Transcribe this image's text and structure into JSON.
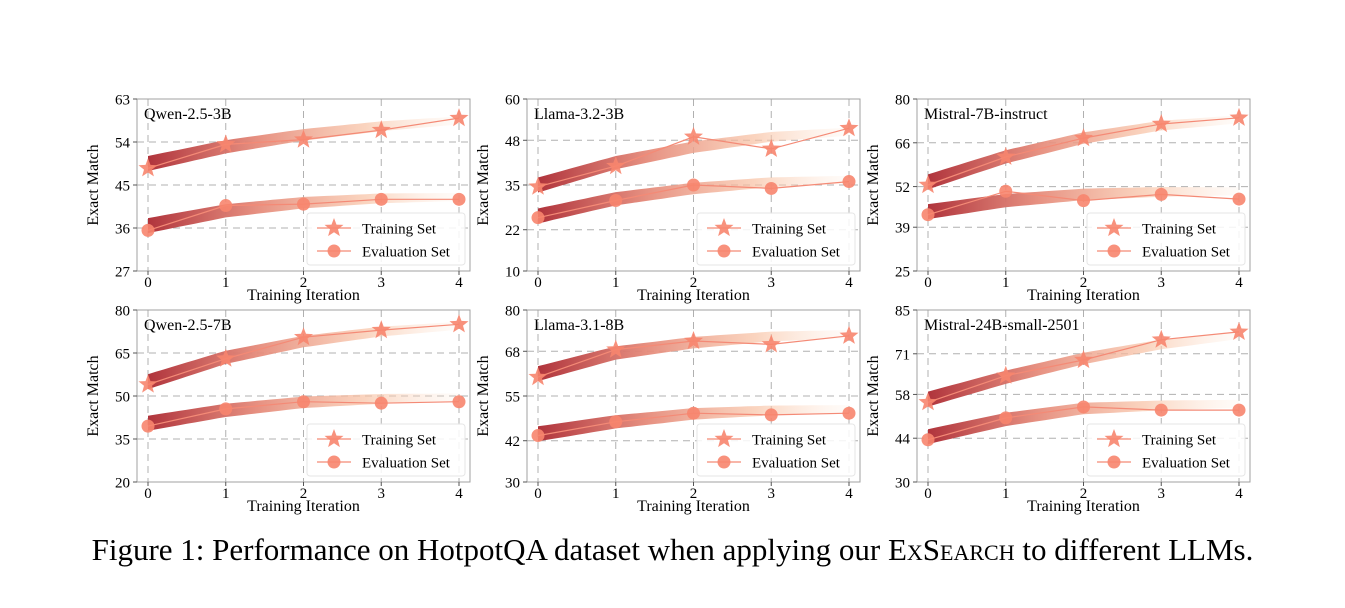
{
  "caption": {
    "prefix": "Figure 1: Performance on HotpotQA dataset when applying our ",
    "method": "ExSearch",
    "suffix": " to different LLMs."
  },
  "colors": {
    "marker": "#f7856e",
    "line": "#f48a76",
    "band_start": "#b0343c",
    "band_end": "#fde7d6",
    "grid": "#b0b0b0"
  },
  "chart_data": [
    {
      "type": "line",
      "title": "Qwen-2.5-3B",
      "xlabel": "Training Iteration",
      "ylabel": "Exact Match",
      "x": [
        0,
        1,
        2,
        3,
        4
      ],
      "yticks": [
        27,
        36,
        45,
        54,
        63
      ],
      "ylim": [
        27,
        63
      ],
      "grid": true,
      "legend": "bottom-right",
      "series": [
        {
          "name": "Training Set",
          "marker": "star",
          "values": [
            48.5,
            53.5,
            54.5,
            56.5,
            59
          ],
          "trend": [
            49.5,
            53.0,
            55.5,
            57.3,
            58.5
          ]
        },
        {
          "name": "Evaluation Set",
          "marker": "circle",
          "values": [
            35.5,
            40.7,
            41,
            42,
            42
          ],
          "trend": [
            36.5,
            39.6,
            41.3,
            42.2,
            42.5
          ]
        }
      ]
    },
    {
      "type": "line",
      "title": "Llama-3.2-3B",
      "xlabel": "Training Iteration",
      "ylabel": "Exact Match",
      "x": [
        0,
        1,
        2,
        3,
        4
      ],
      "yticks": [
        10,
        22,
        35,
        48,
        60
      ],
      "ylim": [
        10,
        60
      ],
      "grid": true,
      "legend": "bottom-right",
      "series": [
        {
          "name": "Training Set",
          "marker": "star",
          "values": [
            34.5,
            40.5,
            49,
            45.5,
            51.5
          ],
          "trend": [
            35.0,
            41.5,
            46.0,
            49.0,
            50.5
          ]
        },
        {
          "name": "Evaluation Set",
          "marker": "circle",
          "values": [
            25.5,
            30.5,
            35,
            34,
            36
          ],
          "trend": [
            26.0,
            31.0,
            34.0,
            35.8,
            36.5
          ]
        }
      ]
    },
    {
      "type": "line",
      "title": "Mistral-7B-instruct",
      "xlabel": "Training Iteration",
      "ylabel": "Exact Match",
      "x": [
        0,
        1,
        2,
        3,
        4
      ],
      "yticks": [
        25,
        39,
        52,
        66,
        80
      ],
      "ylim": [
        25,
        80
      ],
      "grid": true,
      "legend": "bottom-right",
      "series": [
        {
          "name": "Training Set",
          "marker": "star",
          "values": [
            52.5,
            61.5,
            67.5,
            72,
            74
          ],
          "trend": [
            53.5,
            61.5,
            67.5,
            71.5,
            73.5
          ]
        },
        {
          "name": "Evaluation Set",
          "marker": "circle",
          "values": [
            43,
            50.5,
            47.5,
            49.5,
            48
          ],
          "trend": [
            44.0,
            47.5,
            49.5,
            50.3,
            50.5
          ]
        }
      ]
    },
    {
      "type": "line",
      "title": "Qwen-2.5-7B",
      "xlabel": "Training Iteration",
      "ylabel": "Exact Match",
      "x": [
        0,
        1,
        2,
        3,
        4
      ],
      "yticks": [
        20,
        35,
        50,
        65,
        80
      ],
      "ylim": [
        20,
        80
      ],
      "grid": true,
      "legend": "bottom-right",
      "series": [
        {
          "name": "Training Set",
          "marker": "star",
          "values": [
            54,
            63,
            70.5,
            73,
            75
          ],
          "trend": [
            55.0,
            63.5,
            69.0,
            72.5,
            74.5
          ]
        },
        {
          "name": "Evaluation Set",
          "marker": "circle",
          "values": [
            39.5,
            45.5,
            48,
            47.5,
            48
          ],
          "trend": [
            40.5,
            45.0,
            47.8,
            49.0,
            49.5
          ]
        }
      ]
    },
    {
      "type": "line",
      "title": "Llama-3.1-8B",
      "xlabel": "Training Iteration",
      "ylabel": "Exact Match",
      "x": [
        0,
        1,
        2,
        3,
        4
      ],
      "yticks": [
        30,
        42,
        55,
        68,
        80
      ],
      "ylim": [
        30,
        80
      ],
      "grid": true,
      "legend": "bottom-right",
      "series": [
        {
          "name": "Training Set",
          "marker": "star",
          "values": [
            60.5,
            68.5,
            71,
            70,
            72.5
          ],
          "trend": [
            61.5,
            67.5,
            70.5,
            72.3,
            73.0
          ]
        },
        {
          "name": "Evaluation Set",
          "marker": "circle",
          "values": [
            43.5,
            47.5,
            50,
            49.5,
            50
          ],
          "trend": [
            44.0,
            47.5,
            49.8,
            50.8,
            51.2
          ]
        }
      ]
    },
    {
      "type": "line",
      "title": "Mistral-24B-small-2501",
      "xlabel": "Training Iteration",
      "ylabel": "Exact Match",
      "x": [
        0,
        1,
        2,
        3,
        4
      ],
      "yticks": [
        30,
        44,
        58,
        71,
        85
      ],
      "ylim": [
        30,
        85
      ],
      "grid": true,
      "legend": "bottom-right",
      "series": [
        {
          "name": "Training Set",
          "marker": "star",
          "values": [
            55.5,
            64,
            69,
            75.5,
            78
          ],
          "trend": [
            56.5,
            63.5,
            69.5,
            74.0,
            77.0
          ]
        },
        {
          "name": "Evaluation Set",
          "marker": "circle",
          "values": [
            43.5,
            50.5,
            54,
            53,
            53
          ],
          "trend": [
            44.5,
            50.0,
            53.5,
            54.5,
            55.0
          ]
        }
      ]
    }
  ]
}
